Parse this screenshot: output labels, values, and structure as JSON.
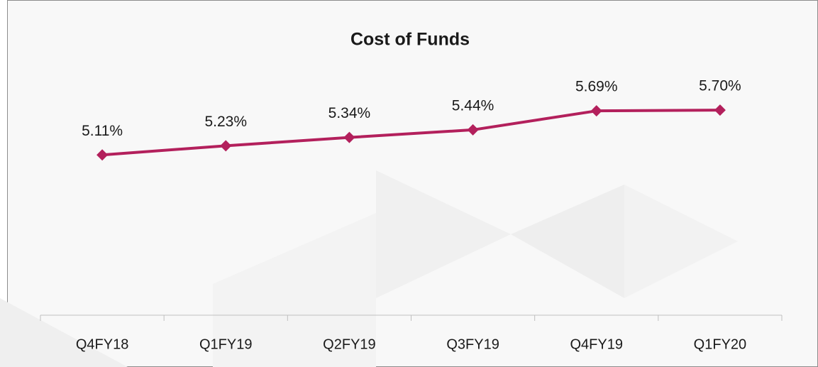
{
  "chart_data": {
    "type": "line",
    "title": "Cost of Funds",
    "categories": [
      "Q4FY18",
      "Q1FY19",
      "Q2FY19",
      "Q3FY19",
      "Q4FY19",
      "Q1FY20"
    ],
    "series": [
      {
        "color": "#b3205c",
        "values": [
          5.11,
          5.23,
          5.34,
          5.44,
          5.69,
          5.7
        ],
        "value_labels": [
          "5.11%",
          "5.23%",
          "5.34%",
          "5.44%",
          "5.69%",
          "5.70%"
        ]
      }
    ],
    "ylim": [
      3,
      6
    ]
  }
}
